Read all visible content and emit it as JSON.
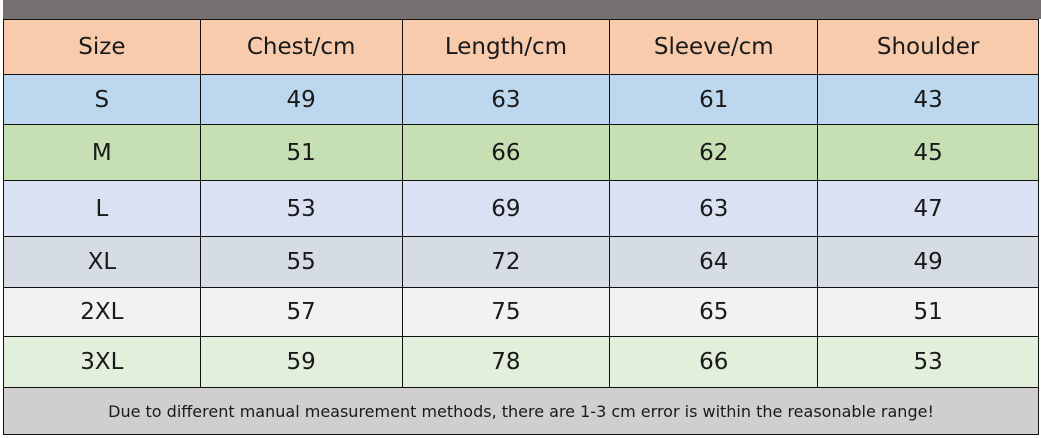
{
  "headers": [
    "Size",
    "Chest/cm",
    "Length/cm",
    "Sleeve/cm",
    "Shoulder"
  ],
  "rows": [
    [
      "S",
      "49",
      "63",
      "61",
      "43"
    ],
    [
      "M",
      "51",
      "66",
      "62",
      "45"
    ],
    [
      "L",
      "53",
      "69",
      "63",
      "47"
    ],
    [
      "XL",
      "55",
      "72",
      "64",
      "49"
    ],
    [
      "2XL",
      "57",
      "75",
      "65",
      "51"
    ],
    [
      "3XL",
      "59",
      "78",
      "66",
      "53"
    ]
  ],
  "note": "Due to different manual measurement methods, there are 1-3 cm error is within the reasonable range!",
  "colors": {
    "header": "#f8cbad",
    "rows": [
      "#bdd7ee",
      "#c6e0b4",
      "#d9e1f2",
      "#d6dce4",
      "#f2f2f2",
      "#e2efda"
    ],
    "footer": "#d0cece",
    "topbar": "#757171"
  }
}
